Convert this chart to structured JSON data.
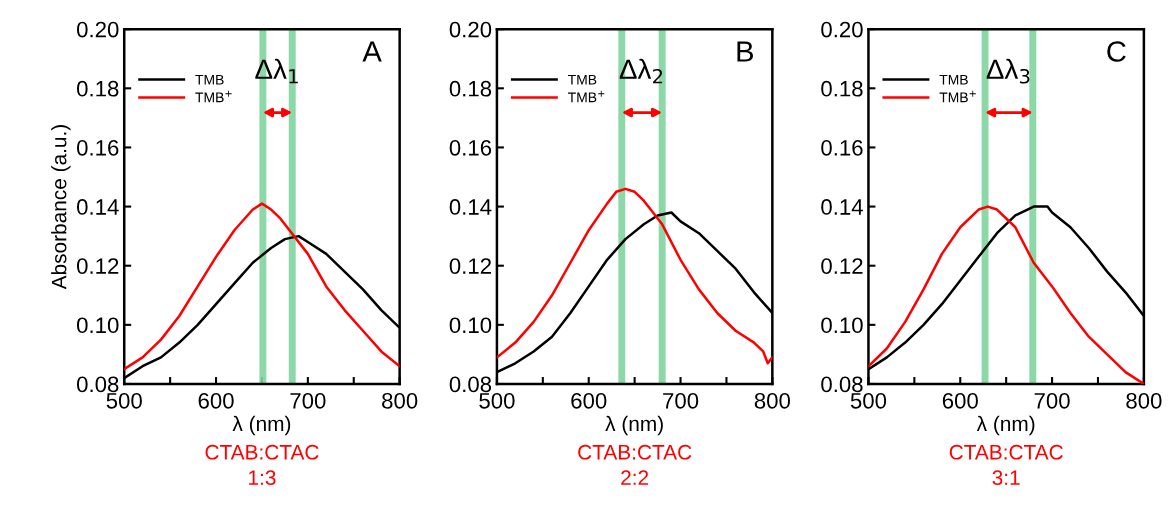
{
  "chart_data": [
    {
      "type": "line",
      "title": "A",
      "xlabel": "λ (nm)",
      "ylabel": "Absorbance (a.u.)",
      "xlim": [
        500,
        800
      ],
      "ylim": [
        0.08,
        0.2
      ],
      "xticks": [
        500,
        {
          "value": 550,
          "label": null
        },
        600,
        {
          "value": 650,
          "label": null
        },
        700,
        {
          "value": 750,
          "label": null
        },
        800
      ],
      "yticks": [
        {
          "value": 0.08,
          "label": "0.08"
        },
        {
          "value": 0.1,
          "label": "0.10"
        },
        {
          "value": 0.12,
          "label": "0.12"
        },
        {
          "value": 0.14,
          "label": "0.14"
        },
        {
          "value": 0.16,
          "label": "0.16"
        },
        {
          "value": 0.18,
          "label": "0.18"
        },
        {
          "value": 0.2,
          "label": "0.20"
        }
      ],
      "legend": "top left",
      "grid": false,
      "ref_lines": [
        {
          "axis": "x",
          "value": 651,
          "color": "#7fd4a0"
        },
        {
          "axis": "x",
          "value": 683,
          "color": "#7fd4a0"
        }
      ],
      "annotations": [
        "Δλ$_{1}$",
        "CTAB:CTAC\n1:3"
      ],
      "series": [
        {
          "name": "TMB",
          "color": "#000000",
          "x": [
            500,
            520,
            540,
            560,
            580,
            600,
            620,
            640,
            660,
            675,
            690,
            700,
            720,
            740,
            760,
            780,
            800
          ],
          "values": [
            0.082,
            0.086,
            0.089,
            0.094,
            0.1,
            0.107,
            0.114,
            0.121,
            0.126,
            0.129,
            0.13,
            0.128,
            0.124,
            0.118,
            0.112,
            0.105,
            0.099
          ]
        },
        {
          "name": "TMB$^{+}$",
          "color": "#ff0000",
          "x": [
            500,
            520,
            540,
            560,
            580,
            600,
            620,
            640,
            650,
            660,
            670,
            680,
            700,
            720,
            740,
            760,
            780,
            800
          ],
          "values": [
            0.085,
            0.089,
            0.095,
            0.103,
            0.113,
            0.123,
            0.132,
            0.139,
            0.141,
            0.139,
            0.136,
            0.132,
            0.124,
            0.113,
            0.105,
            0.098,
            0.091,
            0.086
          ]
        }
      ]
    },
    {
      "type": "line",
      "title": "B",
      "xlabel": "λ (nm)",
      "xlim": [
        500,
        800
      ],
      "ylim": [
        0.08,
        0.2
      ],
      "xticks": [
        500,
        {
          "value": 550,
          "label": null
        },
        600,
        {
          "value": 650,
          "label": null
        },
        700,
        {
          "value": 750,
          "label": null
        },
        800
      ],
      "yticks": [
        {
          "value": 0.08,
          "label": "0.08"
        },
        {
          "value": 0.1,
          "label": "0.10"
        },
        {
          "value": 0.12,
          "label": "0.12"
        },
        {
          "value": 0.14,
          "label": "0.14"
        },
        {
          "value": 0.16,
          "label": "0.16"
        },
        {
          "value": 0.18,
          "label": "0.18"
        },
        {
          "value": 0.2,
          "label": "0.20"
        }
      ],
      "legend": "top left",
      "grid": false,
      "ref_lines": [
        {
          "axis": "x",
          "value": 636,
          "color": "#7fd4a0"
        },
        {
          "axis": "x",
          "value": 680,
          "color": "#7fd4a0"
        }
      ],
      "annotations": [
        "Δλ$_{2}$",
        "CTAB:CTAC\n2:2"
      ],
      "series": [
        {
          "name": "TMB",
          "color": "#000000",
          "x": [
            500,
            520,
            540,
            560,
            580,
            600,
            620,
            640,
            660,
            675,
            690,
            700,
            720,
            740,
            760,
            780,
            800
          ],
          "values": [
            0.084,
            0.087,
            0.091,
            0.096,
            0.104,
            0.113,
            0.122,
            0.129,
            0.134,
            0.137,
            0.138,
            0.135,
            0.131,
            0.125,
            0.119,
            0.111,
            0.104
          ]
        },
        {
          "name": "TMB$^{+}$",
          "color": "#ff0000",
          "x": [
            500,
            520,
            540,
            560,
            580,
            600,
            620,
            630,
            640,
            650,
            660,
            680,
            700,
            720,
            740,
            760,
            780,
            790,
            795,
            800
          ],
          "values": [
            0.089,
            0.094,
            0.101,
            0.11,
            0.121,
            0.132,
            0.141,
            0.145,
            0.146,
            0.145,
            0.142,
            0.134,
            0.122,
            0.112,
            0.104,
            0.098,
            0.094,
            0.091,
            0.087,
            0.089
          ]
        }
      ]
    },
    {
      "type": "line",
      "title": "C",
      "xlabel": "λ (nm)",
      "xlim": [
        500,
        800
      ],
      "ylim": [
        0.08,
        0.2
      ],
      "xticks": [
        500,
        {
          "value": 550,
          "label": null
        },
        600,
        {
          "value": 650,
          "label": null
        },
        700,
        {
          "value": 750,
          "label": null
        },
        800
      ],
      "yticks": [
        {
          "value": 0.08,
          "label": "0.08"
        },
        {
          "value": 0.1,
          "label": "0.10"
        },
        {
          "value": 0.12,
          "label": "0.12"
        },
        {
          "value": 0.14,
          "label": "0.14"
        },
        {
          "value": 0.16,
          "label": "0.16"
        },
        {
          "value": 0.18,
          "label": "0.18"
        },
        {
          "value": 0.2,
          "label": "0.20"
        }
      ],
      "legend": "top left",
      "grid": false,
      "ref_lines": [
        {
          "axis": "x",
          "value": 627,
          "color": "#7fd4a0"
        },
        {
          "axis": "x",
          "value": 679,
          "color": "#7fd4a0"
        }
      ],
      "annotations": [
        "Δλ$_{3}$",
        "CTAB:CTAC\n3:1"
      ],
      "series": [
        {
          "name": "TMB",
          "color": "#000000",
          "x": [
            500,
            520,
            540,
            560,
            580,
            600,
            620,
            640,
            660,
            680,
            695,
            700,
            720,
            740,
            760,
            780,
            800
          ],
          "values": [
            0.085,
            0.089,
            0.094,
            0.1,
            0.107,
            0.115,
            0.123,
            0.131,
            0.137,
            0.14,
            0.14,
            0.138,
            0.133,
            0.126,
            0.118,
            0.111,
            0.103
          ]
        },
        {
          "name": "TMB$^{+}$",
          "color": "#ff0000",
          "x": [
            500,
            520,
            540,
            560,
            580,
            600,
            620,
            630,
            640,
            660,
            680,
            700,
            720,
            740,
            760,
            780,
            800
          ],
          "values": [
            0.086,
            0.092,
            0.101,
            0.112,
            0.124,
            0.133,
            0.139,
            0.14,
            0.139,
            0.133,
            0.121,
            0.113,
            0.104,
            0.096,
            0.09,
            0.084,
            0.08
          ]
        }
      ]
    }
  ]
}
